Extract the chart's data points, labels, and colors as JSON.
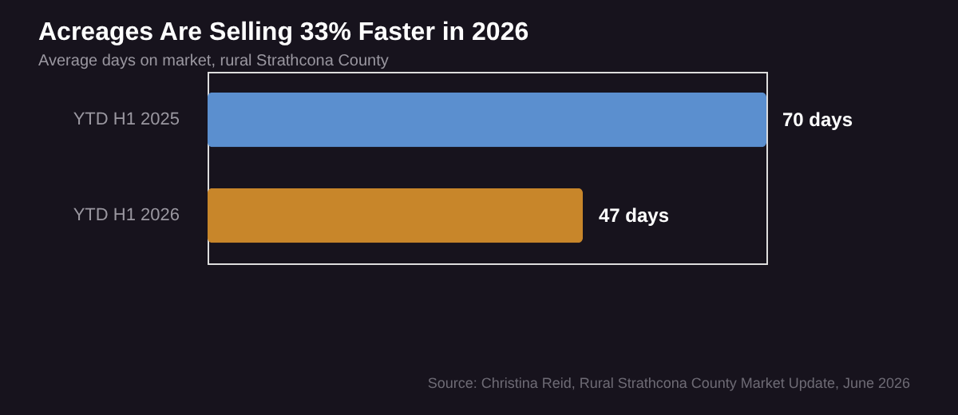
{
  "chart_data": {
    "type": "bar",
    "orientation": "horizontal",
    "title": "Acreages Are Selling 33% Faster in 2026",
    "subtitle": "Average days on market, rural Strathcona County",
    "categories": [
      "YTD H1 2025",
      "YTD H1 2026"
    ],
    "values": [
      70,
      47
    ],
    "colors": [
      "#5b8fcf",
      "#c8862a"
    ],
    "value_labels": [
      "70 days",
      "47 days"
    ],
    "annotations": [
      "Source: Christina Reid, Rural Strathcona County Market Update, June 2026"
    ]
  }
}
